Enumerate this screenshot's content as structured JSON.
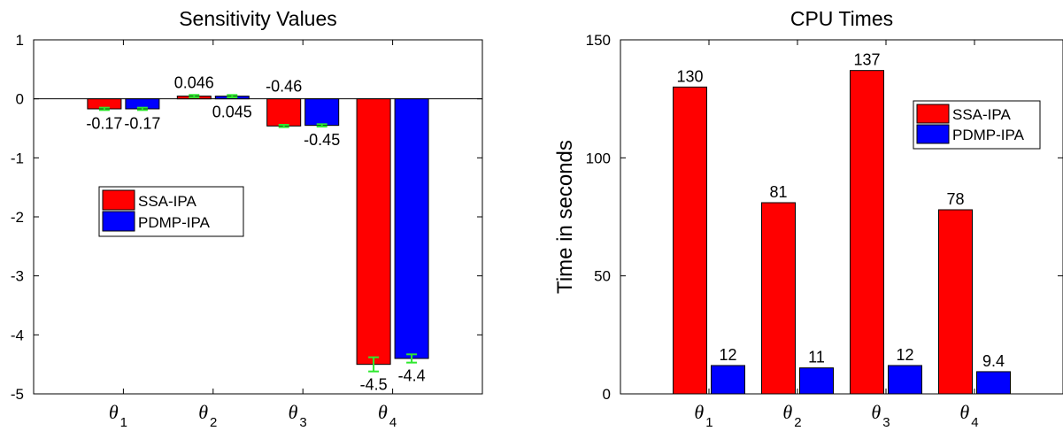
{
  "colors": {
    "ssa": "#ff0000",
    "pdmp": "#0000ff",
    "errorbar": "#2ee82e",
    "axis": "#000000"
  },
  "chart_data": [
    {
      "type": "bar",
      "title": "Sensitivity Values",
      "xlabel": "",
      "ylabel": "",
      "categories": [
        "θ_1",
        "θ_2",
        "θ_3",
        "θ_4"
      ],
      "ylim": [
        -5,
        1
      ],
      "yticks": [
        -5,
        -4,
        -3,
        -2,
        -1,
        0,
        1
      ],
      "legend_position": "center-left",
      "series": [
        {
          "name": "SSA-IPA",
          "values": [
            -0.17,
            0.046,
            -0.46,
            -4.5
          ],
          "labels": [
            "-0.17",
            "0.046",
            "-0.46",
            "-4.5"
          ],
          "error": [
            0.02,
            0.02,
            0.02,
            0.12
          ]
        },
        {
          "name": "PDMP-IPA",
          "values": [
            -0.17,
            0.045,
            -0.45,
            -4.4
          ],
          "labels": [
            "-0.17",
            "0.045",
            "-0.45",
            "-4.4"
          ],
          "error": [
            0.02,
            0.02,
            0.02,
            0.07
          ]
        }
      ]
    },
    {
      "type": "bar",
      "title": "CPU Times",
      "xlabel": "",
      "ylabel": "Time in seconds",
      "categories": [
        "θ_1",
        "θ_2",
        "θ_3",
        "θ_4"
      ],
      "ylim": [
        0,
        150
      ],
      "yticks": [
        0,
        50,
        100,
        150
      ],
      "legend_position": "top-right",
      "series": [
        {
          "name": "SSA-IPA",
          "values": [
            130,
            81,
            137,
            78
          ],
          "labels": [
            "130",
            "81",
            "137",
            "78"
          ]
        },
        {
          "name": "PDMP-IPA",
          "values": [
            12,
            11,
            12,
            9.4
          ],
          "labels": [
            "12",
            "11",
            "12",
            "9.4"
          ]
        }
      ]
    }
  ]
}
